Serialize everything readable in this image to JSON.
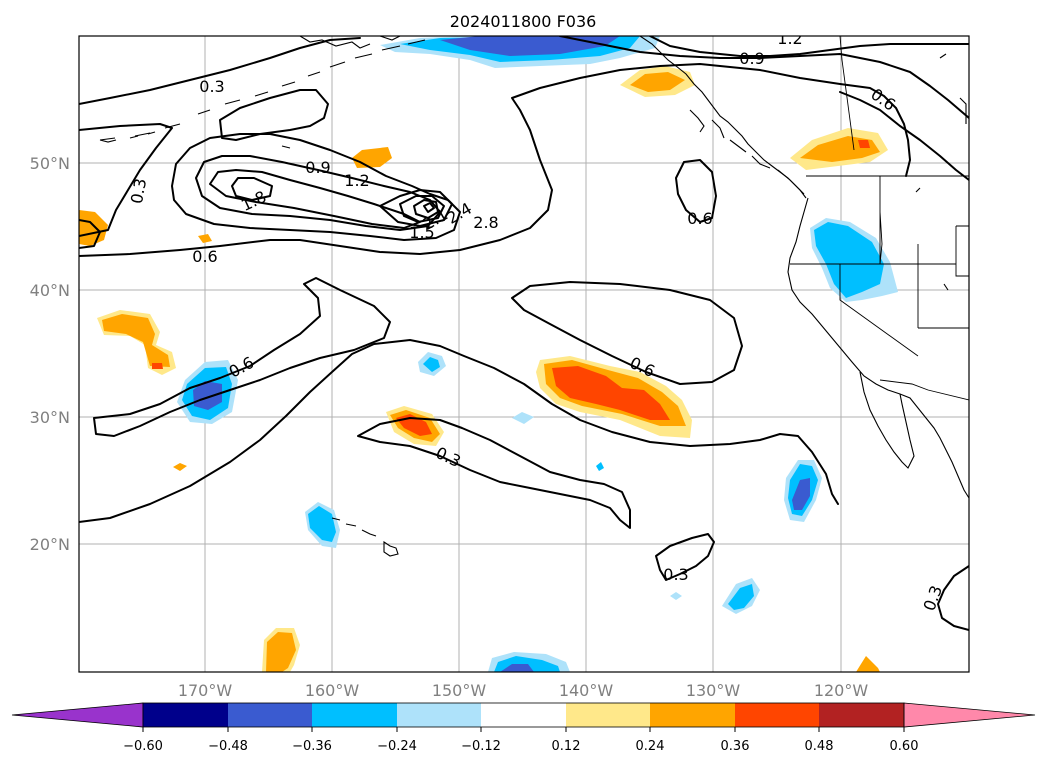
{
  "title": "2024011800 F036",
  "lon_ticks": [
    "170°W",
    "160°W",
    "150°W",
    "140°W",
    "130°W",
    "120°W"
  ],
  "lat_ticks": [
    "50°N",
    "40°N",
    "30°N",
    "20°N"
  ],
  "colorbar": {
    "ticks": [
      "−0.60",
      "−0.48",
      "−0.36",
      "−0.24",
      "−0.12",
      "0.12",
      "0.24",
      "0.36",
      "0.48",
      "0.60"
    ],
    "colors": [
      "#9933cc",
      "#00008b",
      "#3a5bd0",
      "#00bfff",
      "#aee2fa",
      "#ffffff",
      "#ffe88a",
      "#ffa500",
      "#ff4500",
      "#b22222",
      "#ff88aa"
    ]
  },
  "contour_labels": [
    "0.3",
    "0.3",
    "0.6",
    "0.6",
    "0.6",
    "0.6",
    "0.6",
    "0.9",
    "0.9",
    "1.2",
    "1.2",
    "1.5",
    "1.8",
    "2.1",
    "2.4",
    "2.8",
    "0.3",
    "0.3",
    "0.3"
  ],
  "shading_colors": {
    "light_blue": "#aee2fa",
    "blue": "#00bfff",
    "royal_blue": "#3a5bd0",
    "yellow": "#ffe88a",
    "orange": "#ffa500",
    "red_orange": "#ff4500"
  }
}
